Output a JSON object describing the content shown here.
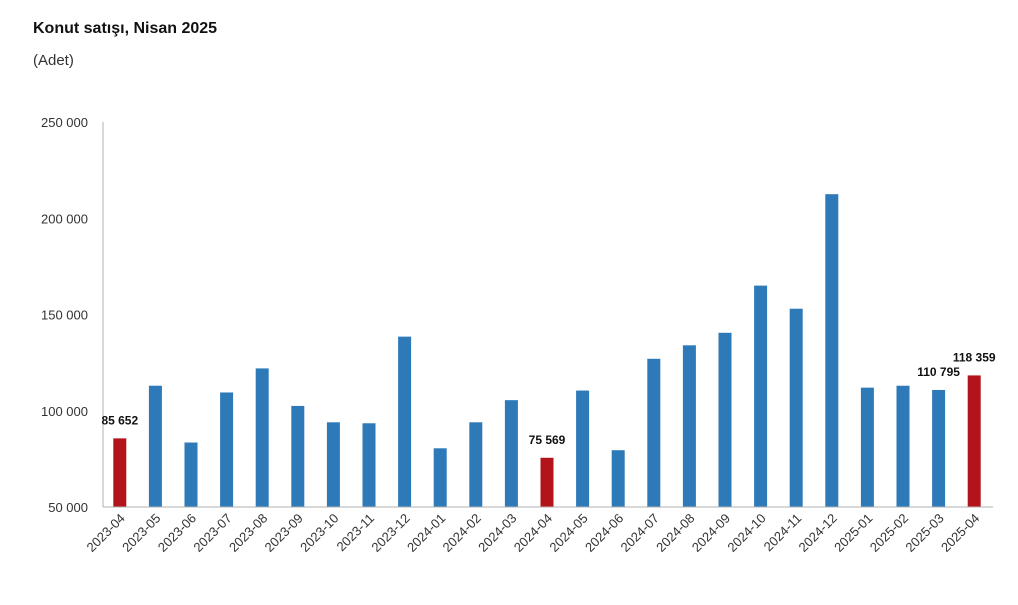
{
  "chart_data": {
    "type": "bar",
    "title": "Konut satışı, Nisan 2025",
    "subtitle": "(Adet)",
    "xlabel": "",
    "ylabel": "",
    "ylim": [
      50000,
      250000
    ],
    "yticks": [
      50000,
      100000,
      150000,
      200000,
      250000
    ],
    "ytick_labels": [
      "50 000",
      "100 000",
      "150 000",
      "200 000",
      "250 000"
    ],
    "grid": false,
    "categories": [
      "2023-04",
      "2023-05",
      "2023-06",
      "2023-07",
      "2023-08",
      "2023-09",
      "2023-10",
      "2023-11",
      "2023-12",
      "2024-01",
      "2024-02",
      "2024-03",
      "2024-04",
      "2024-05",
      "2024-06",
      "2024-07",
      "2024-08",
      "2024-09",
      "2024-10",
      "2024-11",
      "2024-12",
      "2025-01",
      "2025-02",
      "2025-03",
      "2025-04"
    ],
    "values": [
      85652,
      113000,
      83500,
      109500,
      122000,
      102500,
      94000,
      93500,
      138500,
      80500,
      94000,
      105500,
      75569,
      110500,
      79500,
      127000,
      134000,
      140500,
      165000,
      153000,
      212500,
      112000,
      113000,
      110795,
      118359
    ],
    "highlighted": [
      "2023-04",
      "2024-04",
      "2025-04"
    ],
    "data_labels": [
      {
        "category": "2023-04",
        "text": "85 652"
      },
      {
        "category": "2024-04",
        "text": "75 569"
      },
      {
        "category": "2025-03",
        "text": "110 795"
      },
      {
        "category": "2025-04",
        "text": "118 359"
      }
    ],
    "colors": {
      "bar": "#2e7ab8",
      "highlight": "#b3141b",
      "axis": "#b0b0b0"
    }
  }
}
